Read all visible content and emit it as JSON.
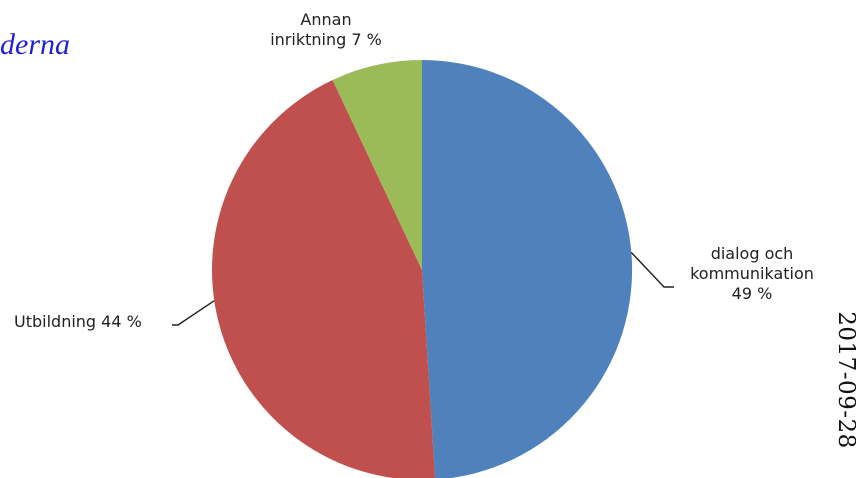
{
  "header": {
    "partial_title": "derna"
  },
  "side_text": {
    "date": "2017-09-28"
  },
  "chart_data": {
    "type": "pie",
    "title": "",
    "start_angle_deg": 0,
    "direction": "clockwise",
    "slices": [
      {
        "label_lines": [
          "dialog och",
          "kommunikation",
          "49 %"
        ],
        "value": 49,
        "color": "#4f81bd"
      },
      {
        "label_lines": [
          "Utbildning 44 %"
        ],
        "value": 44,
        "color": "#c0504d"
      },
      {
        "label_lines": [
          "Annan",
          "inriktning 7 %"
        ],
        "value": 7,
        "color": "#9bbb59"
      }
    ]
  }
}
